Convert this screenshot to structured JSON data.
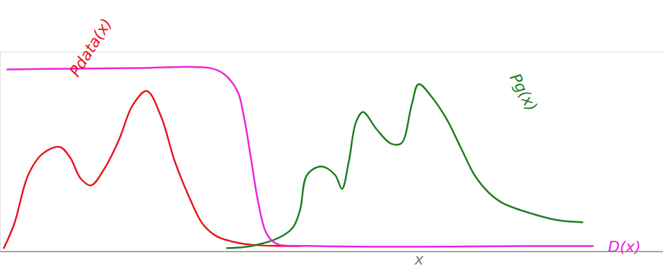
{
  "chart_data": {
    "type": "line",
    "xlabel": "x",
    "xlim": [
      0,
      95.1
    ],
    "ylim": [
      0,
      110
    ],
    "xticks": [],
    "yticks": [],
    "tick_labels": false,
    "grid": false,
    "series": [
      {
        "name": "Pdata(x)",
        "color": "#e8141c",
        "x": [
          0.5,
          2,
          4,
          6,
          8.5,
          10,
          11.5,
          13,
          15,
          17,
          19,
          21,
          23,
          25,
          27,
          29,
          31,
          33,
          36,
          40,
          43
        ],
        "values": [
          1.9,
          15.4,
          42.3,
          53.8,
          57.7,
          51.9,
          40.4,
          36.5,
          46.2,
          61.5,
          80.8,
          88.5,
          75,
          50,
          30.8,
          15.4,
          8.5,
          5.8,
          3.8,
          3.1,
          3.1
        ]
      },
      {
        "name": "Pg(x)",
        "color": "#1e7d1e",
        "x": [
          32.5,
          36,
          40,
          42,
          43,
          44,
          46,
          48,
          49,
          50,
          51,
          52,
          54,
          56,
          57.5,
          59,
          60,
          62,
          64,
          66,
          68,
          70,
          72,
          76,
          80,
          83.5
        ],
        "values": [
          1.9,
          3.1,
          7.7,
          13.5,
          23.1,
          42.3,
          46.9,
          42.3,
          34.6,
          50,
          71.2,
          76.9,
          67.3,
          59.6,
          59.6,
          80.8,
          92.3,
          84.6,
          73.1,
          57.7,
          42.3,
          32.7,
          26.9,
          21.2,
          17.3,
          16.2
        ]
      },
      {
        "name": "D(x)",
        "color": "#ee22dd",
        "x": [
          1,
          10,
          20,
          30,
          32,
          34,
          35,
          36,
          37,
          38,
          39,
          40,
          45,
          60,
          75,
          85
        ],
        "values": [
          100.4,
          100.8,
          101.2,
          101.2,
          98.1,
          88.5,
          73.1,
          50,
          26.9,
          11.5,
          5.8,
          3.8,
          3.1,
          2.7,
          3.1,
          3.1
        ]
      }
    ]
  }
}
